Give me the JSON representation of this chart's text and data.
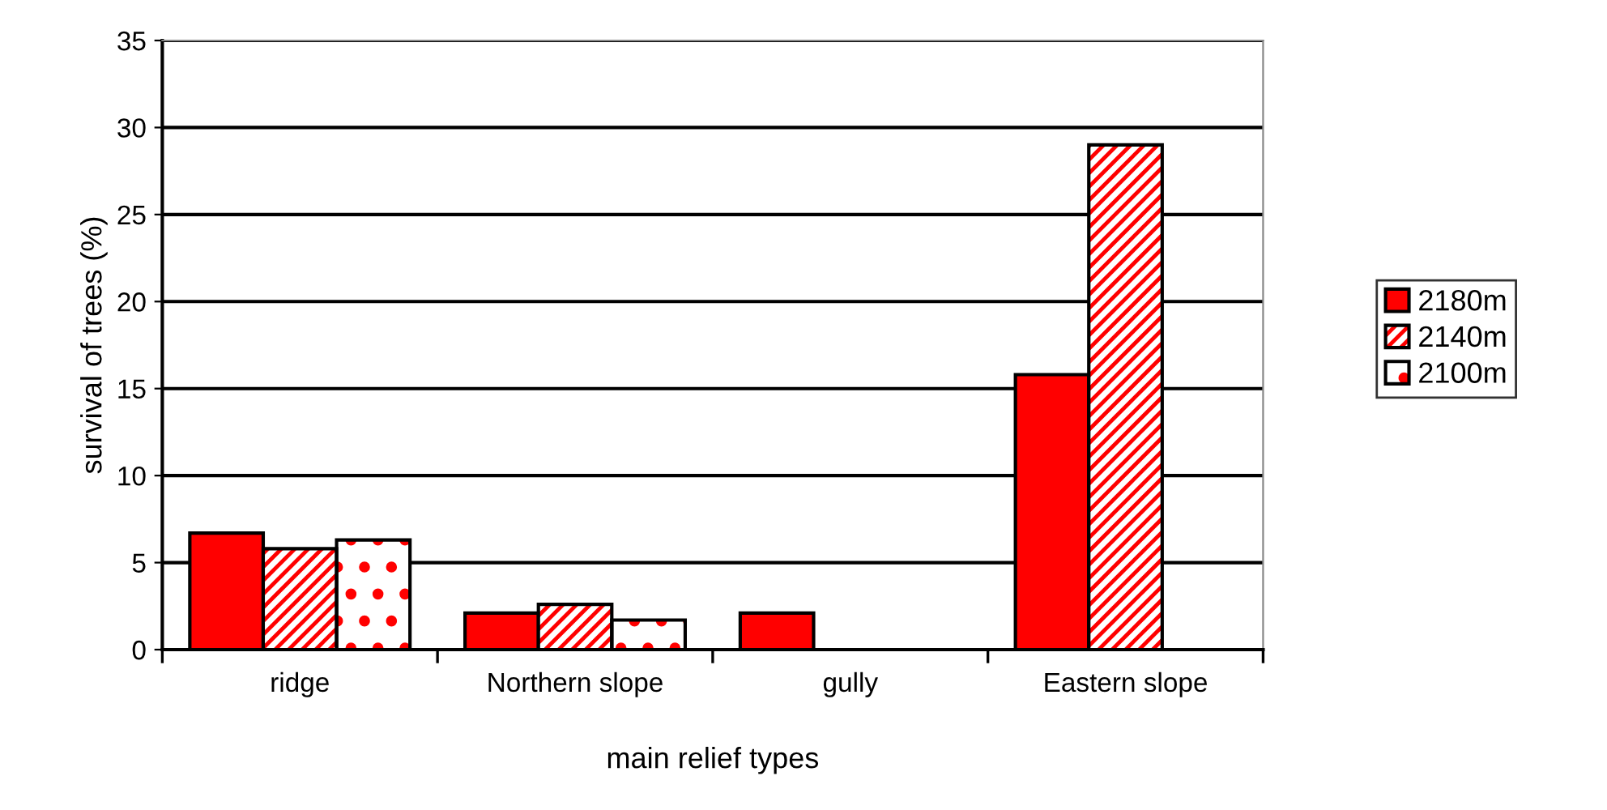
{
  "chart_data": {
    "type": "bar",
    "xlabel": "main relief types",
    "ylabel": "survival of trees (%)",
    "categories": [
      "ridge",
      "Northern slope",
      "gully",
      "Eastern slope"
    ],
    "series": [
      {
        "name": "2180m",
        "color": "#ff0000",
        "values": [
          6.7,
          2.1,
          2.1,
          15.8
        ]
      },
      {
        "name": "2140m",
        "color": "#ff0000",
        "values": [
          5.8,
          2.6,
          null,
          29.0
        ]
      },
      {
        "name": "2100m",
        "color": "#ff0000",
        "values": [
          6.3,
          1.7,
          null,
          null
        ]
      }
    ],
    "ylim": [
      0,
      35
    ],
    "yticks": [
      0,
      5,
      10,
      15,
      20,
      25,
      30,
      35
    ],
    "grid": "y",
    "legend": "right"
  }
}
